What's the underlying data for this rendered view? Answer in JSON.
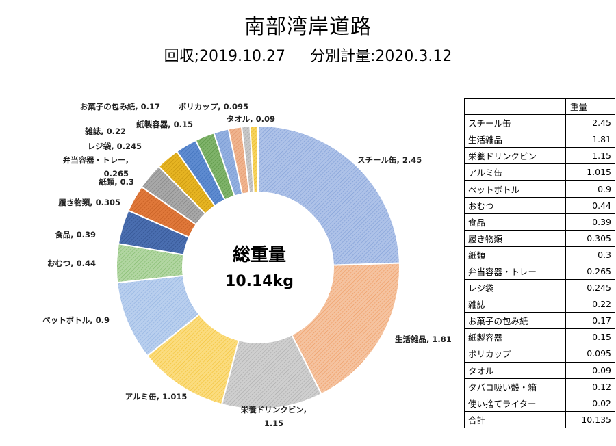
{
  "title": "南部湾岸道路",
  "subtitle": "回収;2019.10.27　  分別計量:2020.3.12",
  "center": {
    "line1": "総重量",
    "line2": "10.14kg"
  },
  "table": {
    "header": "重量",
    "rows": [
      {
        "name": "スチール缶",
        "value": "2.45"
      },
      {
        "name": "生活雑品",
        "value": "1.81"
      },
      {
        "name": "栄養ドリンクビン",
        "value": "1.15"
      },
      {
        "name": "アルミ缶",
        "value": "1.015"
      },
      {
        "name": "ペットボトル",
        "value": "0.9"
      },
      {
        "name": "おむつ",
        "value": "0.44"
      },
      {
        "name": "食品",
        "value": "0.39"
      },
      {
        "name": "履き物類",
        "value": "0.305"
      },
      {
        "name": "紙類",
        "value": "0.3"
      },
      {
        "name": "弁当容器・トレー",
        "value": "0.265"
      },
      {
        "name": "レジ袋",
        "value": "0.245"
      },
      {
        "name": "雑誌",
        "value": "0.22"
      },
      {
        "name": "お菓子の包み紙",
        "value": "0.17"
      },
      {
        "name": "紙製容器",
        "value": "0.15"
      },
      {
        "name": "ポリカップ",
        "value": "0.095"
      },
      {
        "name": "タオル",
        "value": "0.09"
      },
      {
        "name": "タバコ吸い殻・箱",
        "value": "0.12"
      },
      {
        "name": "使い捨てライター",
        "value": "0.02"
      }
    ],
    "total_label": "合計",
    "total_value": "10.135"
  },
  "chart_data": {
    "type": "pie",
    "style": "donut",
    "categories": [
      "スチール缶",
      "生活雑品",
      "栄養ドリンクビン",
      "アルミ缶",
      "ペットボトル",
      "おむつ",
      "食品",
      "履き物類",
      "紙類",
      "弁当容器・トレー",
      "レジ袋",
      "雑誌",
      "お菓子の包み紙",
      "紙製容器",
      "ポリカップ",
      "タオル"
    ],
    "values": [
      2.45,
      1.81,
      1.15,
      1.015,
      0.9,
      0.44,
      0.39,
      0.305,
      0.3,
      0.265,
      0.245,
      0.22,
      0.17,
      0.15,
      0.095,
      0.09
    ],
    "labels": [
      "スチール缶, 2.45",
      "生活雑品, 1.81",
      "栄養ドリンクビン,|1.15",
      "アルミ缶, 1.015",
      "ペットボトル, 0.9",
      "おむつ, 0.44",
      "食品, 0.39",
      "履き物類, 0.305",
      "紙類, 0.3",
      "弁当容器・トレー,|0.265",
      "レジ袋, 0.245",
      "雑誌, 0.22",
      "お菓子の包み紙, 0.17",
      "紙製容器, 0.15",
      "ポリカップ, 0.095",
      "タオル, 0.09"
    ],
    "colors": [
      "#aec2e8",
      "#f5c3a0",
      "#cfcfcf",
      "#fbdc7f",
      "#b9cfee",
      "#b2d6a2",
      "#4a6eb0",
      "#e0783a",
      "#a8a8a8",
      "#e6b422",
      "#5e8bd0",
      "#7fb36a",
      "#93b0e0",
      "#f0b48e",
      "#c8c8c8",
      "#f7d35e"
    ],
    "colors_dark": [
      "#7e9dd6",
      "#ee9a60",
      "#a9a9a9",
      "#f2c233",
      "#8fb0e0",
      "#7fba6a",
      "#2f4f8c",
      "#c05a1e",
      "#7d7d7d",
      "#c08f0a",
      "#3a6cb8",
      "#55913f",
      "#6f92cf",
      "#e09168",
      "#a3a3a3",
      "#e8b81e"
    ]
  }
}
